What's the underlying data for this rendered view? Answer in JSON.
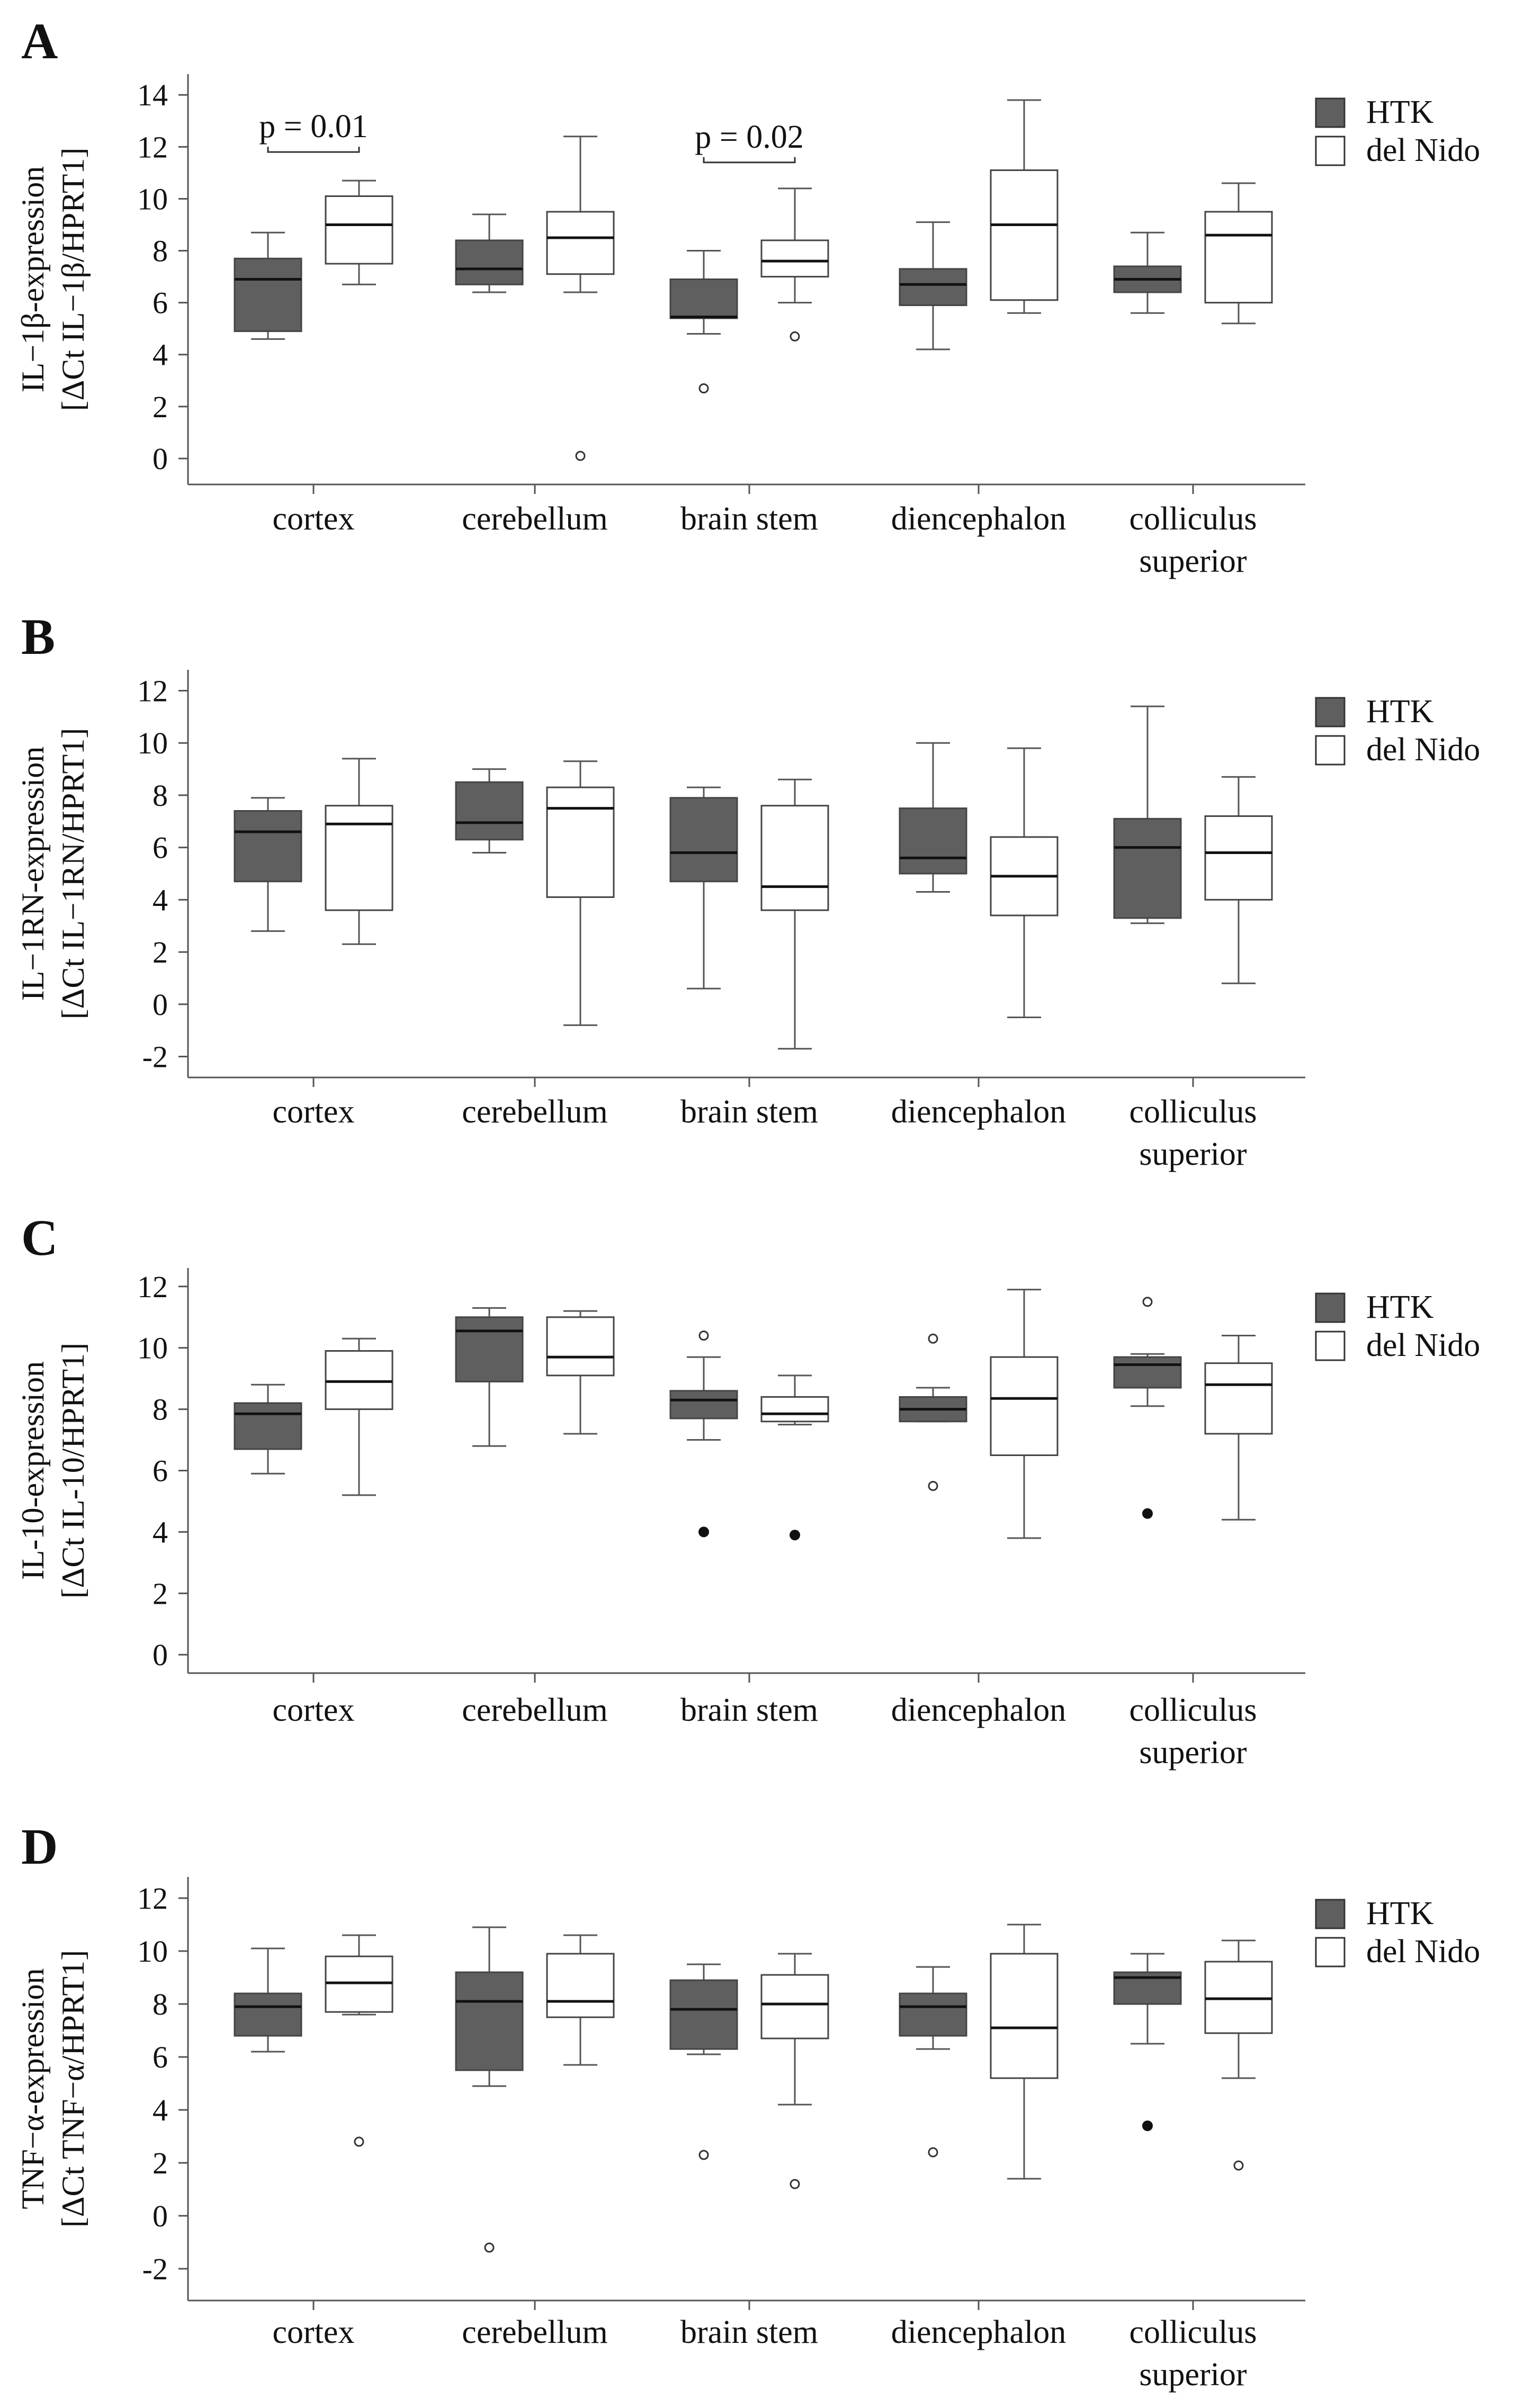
{
  "colors": {
    "htk_fill": "#5f5f5f",
    "delnido_fill": "#ffffff",
    "axis": "#555555",
    "text": "#111111"
  },
  "legend": {
    "htk": "HTK",
    "delnido": "del Nido"
  },
  "chart_data": [
    {
      "type": "box",
      "panel": "A",
      "ylabel_line1": "IL−1β-expression",
      "ylabel_line2": "[ΔCt IL−1β/HPRT1]",
      "ylim": [
        -1,
        14.8
      ],
      "yticks": [
        0,
        2,
        4,
        6,
        8,
        10,
        12,
        14
      ],
      "categories": [
        "cortex",
        "cerebellum",
        "brain stem",
        "diencephalon",
        "colliculus|superior"
      ],
      "series": [
        {
          "name": "HTK",
          "boxes": [
            {
              "min": 4.6,
              "q1": 4.9,
              "median": 6.9,
              "q3": 7.7,
              "max": 8.7,
              "outliers": []
            },
            {
              "min": 6.4,
              "q1": 6.7,
              "median": 7.3,
              "q3": 8.4,
              "max": 9.4,
              "outliers": []
            },
            {
              "min": 4.8,
              "q1": 5.4,
              "median": 5.45,
              "q3": 6.9,
              "max": 8.0,
              "outliers": [
                2.7
              ]
            },
            {
              "min": 4.2,
              "q1": 5.9,
              "median": 6.7,
              "q3": 7.3,
              "max": 9.1,
              "outliers": []
            },
            {
              "min": 5.6,
              "q1": 6.4,
              "median": 6.9,
              "q3": 7.4,
              "max": 8.7,
              "outliers": []
            }
          ]
        },
        {
          "name": "del Nido",
          "boxes": [
            {
              "min": 6.7,
              "q1": 7.5,
              "median": 9.0,
              "q3": 10.1,
              "max": 10.7,
              "outliers": []
            },
            {
              "min": 6.4,
              "q1": 7.1,
              "median": 8.5,
              "q3": 9.5,
              "max": 12.4,
              "outliers": [
                0.1
              ]
            },
            {
              "min": 6.0,
              "q1": 7.0,
              "median": 7.6,
              "q3": 8.4,
              "max": 10.4,
              "outliers": [
                4.7
              ]
            },
            {
              "min": 5.6,
              "q1": 6.1,
              "median": 9.0,
              "q3": 11.1,
              "max": 13.8,
              "outliers": []
            },
            {
              "min": 5.2,
              "q1": 6.0,
              "median": 8.6,
              "q3": 9.5,
              "max": 10.6,
              "outliers": []
            }
          ]
        }
      ],
      "annotations": [
        {
          "category": 0,
          "label": "p = 0.01",
          "y": 11.8
        },
        {
          "category": 2,
          "label": "p = 0.02",
          "y": 11.4
        }
      ]
    },
    {
      "type": "box",
      "panel": "B",
      "ylabel_line1": "IL−1RN-expression",
      "ylabel_line2": "[ΔCt IL−1RN/HPRT1]",
      "ylim": [
        -2.8,
        12.8
      ],
      "yticks": [
        -2,
        0,
        2,
        4,
        6,
        8,
        10,
        12
      ],
      "categories": [
        "cortex",
        "cerebellum",
        "brain stem",
        "diencephalon",
        "colliculus|superior"
      ],
      "series": [
        {
          "name": "HTK",
          "boxes": [
            {
              "min": 2.8,
              "q1": 4.7,
              "median": 6.6,
              "q3": 7.4,
              "max": 7.9,
              "outliers": []
            },
            {
              "min": 5.8,
              "q1": 6.3,
              "median": 6.95,
              "q3": 8.5,
              "max": 9.0,
              "outliers": []
            },
            {
              "min": 0.6,
              "q1": 4.7,
              "median": 5.8,
              "q3": 7.9,
              "max": 8.3,
              "outliers": []
            },
            {
              "min": 4.3,
              "q1": 5.0,
              "median": 5.6,
              "q3": 7.5,
              "max": 10.0,
              "outliers": []
            },
            {
              "min": 3.1,
              "q1": 3.3,
              "median": 6.0,
              "q3": 7.1,
              "max": 11.4,
              "outliers": []
            }
          ]
        },
        {
          "name": "del Nido",
          "boxes": [
            {
              "min": 2.3,
              "q1": 3.6,
              "median": 6.9,
              "q3": 7.6,
              "max": 9.4,
              "outliers": []
            },
            {
              "min": -0.8,
              "q1": 4.1,
              "median": 7.5,
              "q3": 8.3,
              "max": 9.3,
              "outliers": []
            },
            {
              "min": -1.7,
              "q1": 3.6,
              "median": 4.5,
              "q3": 7.6,
              "max": 8.6,
              "outliers": []
            },
            {
              "min": -0.5,
              "q1": 3.4,
              "median": 4.9,
              "q3": 6.4,
              "max": 9.8,
              "outliers": []
            },
            {
              "min": 0.8,
              "q1": 4.0,
              "median": 5.8,
              "q3": 7.2,
              "max": 8.7,
              "outliers": []
            }
          ]
        }
      ],
      "annotations": []
    },
    {
      "type": "box",
      "panel": "C",
      "ylabel_line1": "IL-10-expression",
      "ylabel_line2": "[ΔCt IL-10/HPRT1]",
      "ylim": [
        -0.6,
        12.6
      ],
      "yticks": [
        0,
        2,
        4,
        6,
        8,
        10,
        12
      ],
      "categories": [
        "cortex",
        "cerebellum",
        "brain stem",
        "diencephalon",
        "colliculus|superior"
      ],
      "series": [
        {
          "name": "HTK",
          "boxes": [
            {
              "min": 5.9,
              "q1": 6.7,
              "median": 7.85,
              "q3": 8.2,
              "max": 8.8,
              "outliers": []
            },
            {
              "min": 6.8,
              "q1": 8.9,
              "median": 10.55,
              "q3": 11.0,
              "max": 11.3,
              "outliers": []
            },
            {
              "min": 7.0,
              "q1": 7.7,
              "median": 8.3,
              "q3": 8.6,
              "max": 9.7,
              "outliers": [
                10.4
              ],
              "extremes": [
                4.0
              ]
            },
            {
              "min": 7.6,
              "q1": 7.6,
              "median": 8.0,
              "q3": 8.4,
              "max": 8.7,
              "outliers": [
                10.3,
                5.5
              ]
            },
            {
              "min": 8.1,
              "q1": 8.7,
              "median": 9.45,
              "q3": 9.7,
              "max": 9.8,
              "outliers": [
                11.5
              ],
              "extremes": [
                4.6
              ]
            }
          ]
        },
        {
          "name": "del Nido",
          "boxes": [
            {
              "min": 5.2,
              "q1": 8.0,
              "median": 8.9,
              "q3": 9.9,
              "max": 10.3,
              "outliers": []
            },
            {
              "min": 7.2,
              "q1": 9.1,
              "median": 9.7,
              "q3": 11.0,
              "max": 11.2,
              "outliers": []
            },
            {
              "min": 7.5,
              "q1": 7.6,
              "median": 7.85,
              "q3": 8.4,
              "max": 9.1,
              "outliers": [],
              "extremes": [
                3.9
              ]
            },
            {
              "min": 3.8,
              "q1": 6.5,
              "median": 8.35,
              "q3": 9.7,
              "max": 11.9,
              "outliers": []
            },
            {
              "min": 4.4,
              "q1": 7.2,
              "median": 8.8,
              "q3": 9.5,
              "max": 10.4,
              "outliers": []
            }
          ]
        }
      ],
      "annotations": []
    },
    {
      "type": "box",
      "panel": "D",
      "ylabel_line1": "TNF−α-expression",
      "ylabel_line2": "[ΔCt TNF−α/HPRT1]",
      "ylim": [
        -3.2,
        12.8
      ],
      "yticks": [
        -2,
        0,
        2,
        4,
        6,
        8,
        10,
        12
      ],
      "categories": [
        "cortex",
        "cerebellum",
        "brain stem",
        "diencephalon",
        "colliculus|superior"
      ],
      "series": [
        {
          "name": "HTK",
          "boxes": [
            {
              "min": 6.2,
              "q1": 6.8,
              "median": 7.9,
              "q3": 8.4,
              "max": 10.1,
              "outliers": []
            },
            {
              "min": 4.9,
              "q1": 5.5,
              "median": 8.1,
              "q3": 9.2,
              "max": 10.9,
              "outliers": [
                -1.2
              ]
            },
            {
              "min": 6.1,
              "q1": 6.3,
              "median": 7.8,
              "q3": 8.9,
              "max": 9.5,
              "outliers": [
                2.3
              ]
            },
            {
              "min": 6.3,
              "q1": 6.8,
              "median": 7.9,
              "q3": 8.4,
              "max": 9.4,
              "outliers": [
                2.4
              ]
            },
            {
              "min": 6.5,
              "q1": 8.0,
              "median": 9.0,
              "q3": 9.2,
              "max": 9.9,
              "outliers": [],
              "extremes": [
                3.4
              ]
            }
          ]
        },
        {
          "name": "del Nido",
          "boxes": [
            {
              "min": 7.6,
              "q1": 7.7,
              "median": 8.8,
              "q3": 9.8,
              "max": 10.6,
              "outliers": [
                2.8
              ]
            },
            {
              "min": 5.7,
              "q1": 7.5,
              "median": 8.1,
              "q3": 9.9,
              "max": 10.6,
              "outliers": []
            },
            {
              "min": 4.2,
              "q1": 6.7,
              "median": 8.0,
              "q3": 9.1,
              "max": 9.9,
              "outliers": [
                1.2
              ]
            },
            {
              "min": 1.4,
              "q1": 5.2,
              "median": 7.1,
              "q3": 9.9,
              "max": 11.0,
              "outliers": []
            },
            {
              "min": 5.2,
              "q1": 6.9,
              "median": 8.2,
              "q3": 9.6,
              "max": 10.4,
              "outliers": [
                1.9
              ]
            }
          ]
        }
      ],
      "annotations": []
    }
  ]
}
